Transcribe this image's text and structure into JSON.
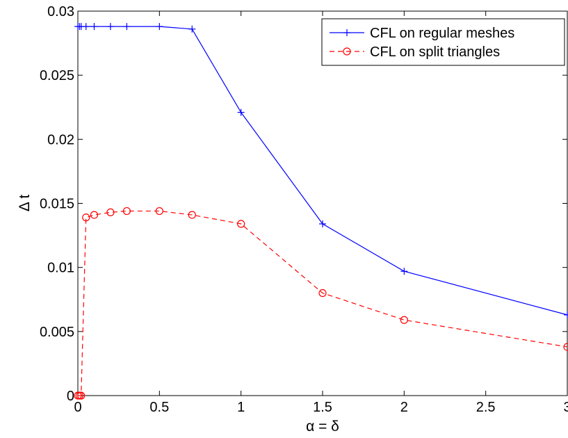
{
  "chart_data": {
    "type": "line",
    "title": "",
    "xlabel": "α = δ",
    "ylabel": "Δ t",
    "xlim": [
      0,
      3
    ],
    "ylim": [
      0,
      0.03
    ],
    "xticks": [
      0,
      0.5,
      1,
      1.5,
      2,
      2.5,
      3
    ],
    "xtick_labels": [
      "0",
      "0.5",
      "1",
      "1.5",
      "2",
      "2.5",
      "3"
    ],
    "yticks": [
      0,
      0.005,
      0.01,
      0.015,
      0.02,
      0.025,
      0.03
    ],
    "ytick_labels": [
      "0",
      "0.005",
      "0.01",
      "0.015",
      "0.02",
      "0.025",
      "0.03"
    ],
    "grid": false,
    "legend_position": "top-right",
    "series": [
      {
        "name": "CFL on regular meshes",
        "color": "#0000ff",
        "line_style": "solid",
        "marker": "plus",
        "x": [
          0,
          0.01,
          0.02,
          0.05,
          0.1,
          0.2,
          0.3,
          0.5,
          0.7,
          1,
          1.5,
          2,
          3
        ],
        "y": [
          0.0288,
          0.0288,
          0.0288,
          0.0288,
          0.0288,
          0.0288,
          0.0288,
          0.0288,
          0.0286,
          0.0221,
          0.0134,
          0.0097,
          0.0063
        ]
      },
      {
        "name": "CFL on split triangles",
        "color": "#ff0000",
        "line_style": "dashed",
        "marker": "circle",
        "x": [
          0,
          0.01,
          0.02,
          0.05,
          0.1,
          0.2,
          0.3,
          0.5,
          0.7,
          1,
          1.5,
          2,
          3
        ],
        "y": [
          0,
          0,
          0,
          0.0139,
          0.0141,
          0.0143,
          0.0144,
          0.0144,
          0.0141,
          0.0134,
          0.008,
          0.0059,
          0.0038
        ]
      }
    ]
  }
}
